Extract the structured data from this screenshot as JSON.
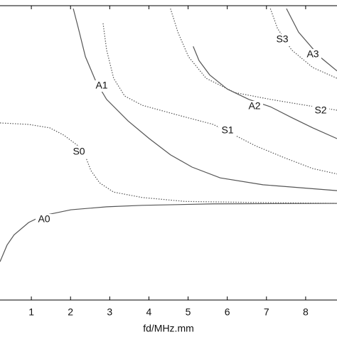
{
  "chart_data": {
    "type": "line",
    "x_label": "fd/MHz.mm",
    "xlim": [
      0.2,
      8.8
    ],
    "xticks": [
      1,
      2,
      3,
      4,
      5,
      6,
      7,
      8
    ],
    "ylim": [
      0,
      6
    ],
    "grid": false,
    "series": [
      {
        "name": "A0",
        "color": "#555555",
        "style": "solid",
        "x": [
          0.2,
          0.38,
          0.56,
          0.93,
          1.29,
          2.01,
          2.92,
          3.83,
          5.64,
          8.8
        ],
        "values": [
          0.78,
          1.12,
          1.33,
          1.58,
          1.72,
          1.84,
          1.9,
          1.93,
          1.96,
          1.97
        ]
      },
      {
        "name": "S0",
        "color": "#555555",
        "style": "dotted",
        "x": [
          0.2,
          0.93,
          1.47,
          1.83,
          2.2,
          2.38,
          2.52,
          2.74,
          3.1,
          3.83,
          4.92,
          6.55,
          8.8
        ],
        "values": [
          3.61,
          3.58,
          3.51,
          3.36,
          3.14,
          2.93,
          2.64,
          2.39,
          2.2,
          2.09,
          2.01,
          1.99,
          1.97
        ]
      },
      {
        "name": "A1",
        "color": "#555555",
        "style": "solid",
        "x": [
          2.07,
          2.2,
          2.38,
          2.65,
          2.92,
          3.47,
          4.01,
          4.55,
          5.1,
          5.82,
          6.91,
          8.8
        ],
        "values": [
          5.94,
          5.54,
          4.96,
          4.45,
          4.09,
          3.65,
          3.29,
          2.96,
          2.71,
          2.49,
          2.35,
          2.23
        ]
      },
      {
        "name": "S1",
        "color": "#555555",
        "style": "dotted",
        "x": [
          2.83,
          2.92,
          3.1,
          3.38,
          3.83,
          4.74,
          5.64,
          6.19,
          6.73,
          7.46,
          8.18,
          8.8
        ],
        "values": [
          5.64,
          5.1,
          4.52,
          4.16,
          3.97,
          3.77,
          3.58,
          3.36,
          3.14,
          2.9,
          2.68,
          2.57
        ]
      },
      {
        "name": "A2",
        "color": "#555555",
        "style": "solid",
        "x": [
          5.13,
          5.28,
          5.55,
          6.0,
          6.55,
          7.1,
          7.64,
          8.18,
          8.8
        ],
        "values": [
          5.17,
          4.88,
          4.59,
          4.3,
          4.09,
          3.94,
          3.72,
          3.51,
          3.29
        ]
      },
      {
        "name": "S2",
        "color": "#555555",
        "style": "dotted",
        "x": [
          4.55,
          4.74,
          5.01,
          5.46,
          6.19,
          7.1,
          8.0,
          8.8
        ],
        "values": [
          5.94,
          5.46,
          4.96,
          4.52,
          4.23,
          4.09,
          3.97,
          3.87
        ]
      },
      {
        "name": "S3",
        "color": "#555555",
        "style": "dotted",
        "x": [
          7.1,
          7.28,
          7.64,
          8.18,
          8.8
        ],
        "values": [
          5.94,
          5.54,
          5.1,
          4.74,
          4.52
        ]
      },
      {
        "name": "A3",
        "color": "#555555",
        "style": "solid",
        "x": [
          7.51,
          7.82,
          8.36,
          8.8
        ],
        "values": [
          5.94,
          5.46,
          4.96,
          4.67
        ]
      }
    ]
  }
}
